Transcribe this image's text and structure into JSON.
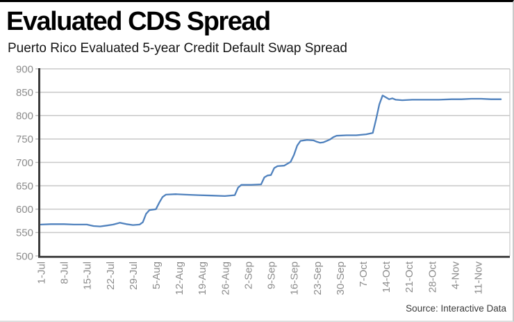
{
  "header": {
    "title": "Evaluated CDS Spread",
    "subtitle": "Puerto Rico Evaluated 5-year Credit Default Swap Spread"
  },
  "source": {
    "label": "Source: Interactive Data"
  },
  "chart_data": {
    "type": "line",
    "title": "Puerto Rico Evaluated 5-year Credit Default Swap Spread",
    "xlabel": "",
    "ylabel": "",
    "ylim": [
      500,
      900
    ],
    "y_ticks": [
      900,
      850,
      800,
      750,
      700,
      650,
      600,
      550,
      500
    ],
    "x_tick_labels": [
      "1-Jul",
      "8-Jul",
      "15-Jul",
      "22-Jul",
      "29-Jul",
      "5-Aug",
      "12-Aug",
      "19-Aug",
      "26-Aug",
      "2-Sep",
      "9-Sep",
      "16-Sep",
      "23-Sep",
      "30-Sep",
      "7-Oct",
      "14-Oct",
      "21-Oct",
      "28-Oct",
      "4-Nov",
      "11-Nov"
    ],
    "x_tick_days": [
      0,
      7,
      14,
      21,
      28,
      35,
      42,
      49,
      56,
      63,
      70,
      77,
      84,
      91,
      98,
      105,
      112,
      119,
      126,
      133
    ],
    "xlim_days": [
      0,
      143
    ],
    "grid": "horizontal",
    "legend": "none",
    "colors": {
      "line": "#4f81bd",
      "grid": "#c8c8c8",
      "axis": "#3b3b3b",
      "tick_label": "#8c8c8c"
    },
    "series": [
      {
        "name": "Evaluated 5-year CDS spread",
        "points": [
          [
            0,
            567
          ],
          [
            3,
            568
          ],
          [
            7,
            568
          ],
          [
            10,
            567
          ],
          [
            14,
            567
          ],
          [
            16,
            564
          ],
          [
            18,
            563
          ],
          [
            20,
            565
          ],
          [
            22,
            567
          ],
          [
            24,
            571
          ],
          [
            26,
            568
          ],
          [
            28,
            566
          ],
          [
            30,
            567
          ],
          [
            31,
            572
          ],
          [
            32,
            590
          ],
          [
            33,
            598
          ],
          [
            35,
            600
          ],
          [
            36,
            614
          ],
          [
            37,
            626
          ],
          [
            38,
            631
          ],
          [
            41,
            632
          ],
          [
            44,
            631
          ],
          [
            48,
            630
          ],
          [
            52,
            629
          ],
          [
            56,
            628
          ],
          [
            59,
            630
          ],
          [
            60,
            646
          ],
          [
            61,
            652
          ],
          [
            64,
            652
          ],
          [
            67,
            653
          ],
          [
            68,
            668
          ],
          [
            69,
            672
          ],
          [
            70,
            673
          ],
          [
            71,
            688
          ],
          [
            72,
            692
          ],
          [
            74,
            693
          ],
          [
            75,
            697
          ],
          [
            76,
            701
          ],
          [
            77,
            716
          ],
          [
            78,
            736
          ],
          [
            79,
            746
          ],
          [
            81,
            748
          ],
          [
            83,
            747
          ],
          [
            84,
            744
          ],
          [
            85,
            742
          ],
          [
            86,
            743
          ],
          [
            87,
            746
          ],
          [
            88,
            749
          ],
          [
            89,
            754
          ],
          [
            90,
            757
          ],
          [
            93,
            758
          ],
          [
            96,
            758
          ],
          [
            99,
            760
          ],
          [
            101,
            763
          ],
          [
            102,
            792
          ],
          [
            103,
            824
          ],
          [
            104,
            843
          ],
          [
            105,
            839
          ],
          [
            106,
            835
          ],
          [
            107,
            837
          ],
          [
            108,
            834
          ],
          [
            110,
            833
          ],
          [
            113,
            834
          ],
          [
            117,
            834
          ],
          [
            121,
            834
          ],
          [
            125,
            835
          ],
          [
            128,
            835
          ],
          [
            131,
            836
          ],
          [
            134,
            836
          ],
          [
            137,
            835
          ],
          [
            140,
            835
          ]
        ]
      }
    ]
  }
}
